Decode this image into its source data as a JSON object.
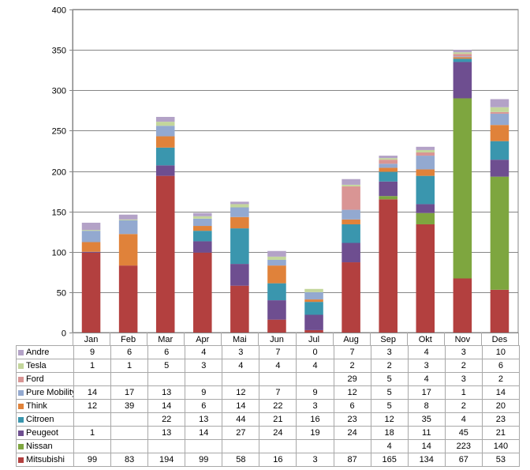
{
  "chart_data": {
    "type": "bar",
    "stacked": true,
    "title": "",
    "xlabel": "",
    "ylabel": "",
    "ylim": [
      0,
      400
    ],
    "yticks": [
      0,
      50,
      100,
      150,
      200,
      250,
      300,
      350,
      400
    ],
    "grid": true,
    "legend": "data-table-below",
    "categories": [
      "Jan",
      "Feb",
      "Mar",
      "Apr",
      "Mai",
      "Jun",
      "Jul",
      "Aug",
      "Sep",
      "Okt",
      "Nov",
      "Des"
    ],
    "series": [
      {
        "name": "Mitsubishi",
        "color": "#b3403f",
        "values": [
          99,
          83,
          194,
          99,
          58,
          16,
          3,
          87,
          165,
          134,
          67,
          53
        ],
        "labels": [
          "99",
          "83",
          "194",
          "99",
          "58",
          "16",
          "3",
          "87",
          "165",
          "134",
          "67",
          "53"
        ]
      },
      {
        "name": "Nissan",
        "color": "#7ea63f",
        "values": [
          null,
          null,
          null,
          null,
          null,
          null,
          null,
          null,
          4,
          14,
          223,
          140
        ],
        "labels": [
          "",
          "",
          "",
          "",
          "",
          "",
          "",
          "",
          "4",
          "14",
          "223",
          "140"
        ]
      },
      {
        "name": "Peugeot",
        "color": "#6e4e90",
        "values": [
          1,
          null,
          13,
          14,
          27,
          24,
          19,
          24,
          18,
          11,
          45,
          21
        ],
        "labels": [
          "1",
          "",
          "13",
          "14",
          "27",
          "24",
          "19",
          "24",
          "18",
          "11",
          "45",
          "21"
        ]
      },
      {
        "name": "Citroen",
        "color": "#3a96ae",
        "values": [
          null,
          null,
          22,
          13,
          44,
          21,
          16,
          23,
          12,
          35,
          4,
          23
        ],
        "labels": [
          "",
          "",
          "22",
          "13",
          "44",
          "21",
          "16",
          "23",
          "12",
          "35",
          "4",
          "23"
        ]
      },
      {
        "name": "Think",
        "color": "#e0823a",
        "values": [
          12,
          39,
          14,
          6,
          14,
          22,
          3,
          6,
          5,
          8,
          2,
          20
        ],
        "labels": [
          "12",
          "39",
          "14",
          "6",
          "14",
          "22",
          "3",
          "6",
          "5",
          "8",
          "2",
          "20"
        ]
      },
      {
        "name": "Pure Mobility",
        "color": "#93a9d0",
        "values": [
          14,
          17,
          13,
          9,
          12,
          7,
          9,
          12,
          5,
          17,
          1,
          14
        ],
        "labels": [
          "14",
          "17",
          "13",
          "9",
          "12",
          "7",
          "9",
          "12",
          "5",
          "17",
          "1",
          "14"
        ]
      },
      {
        "name": "Ford",
        "color": "#d99594",
        "values": [
          null,
          null,
          null,
          null,
          null,
          null,
          null,
          29,
          5,
          4,
          3,
          2
        ],
        "labels": [
          "",
          "",
          "",
          "",
          "",
          "",
          "",
          "29",
          "5",
          "4",
          "3",
          "2"
        ]
      },
      {
        "name": "Tesla",
        "color": "#c3d69b",
        "values": [
          1,
          1,
          5,
          3,
          4,
          4,
          4,
          2,
          2,
          3,
          2,
          6
        ],
        "labels": [
          "1",
          "1",
          "5",
          "3",
          "4",
          "4",
          "4",
          "2",
          "2",
          "3",
          "2",
          "6"
        ]
      },
      {
        "name": "Andre",
        "color": "#b3a2c7",
        "values": [
          9,
          6,
          6,
          4,
          3,
          7,
          0,
          7,
          3,
          4,
          3,
          10
        ],
        "labels": [
          "9",
          "6",
          "6",
          "4",
          "3",
          "7",
          "0",
          "7",
          "3",
          "4",
          "3",
          "10"
        ]
      }
    ],
    "table_row_order": [
      "Andre",
      "Tesla",
      "Ford",
      "Pure Mobility",
      "Think",
      "Citroen",
      "Peugeot",
      "Nissan",
      "Mitsubishi"
    ]
  }
}
